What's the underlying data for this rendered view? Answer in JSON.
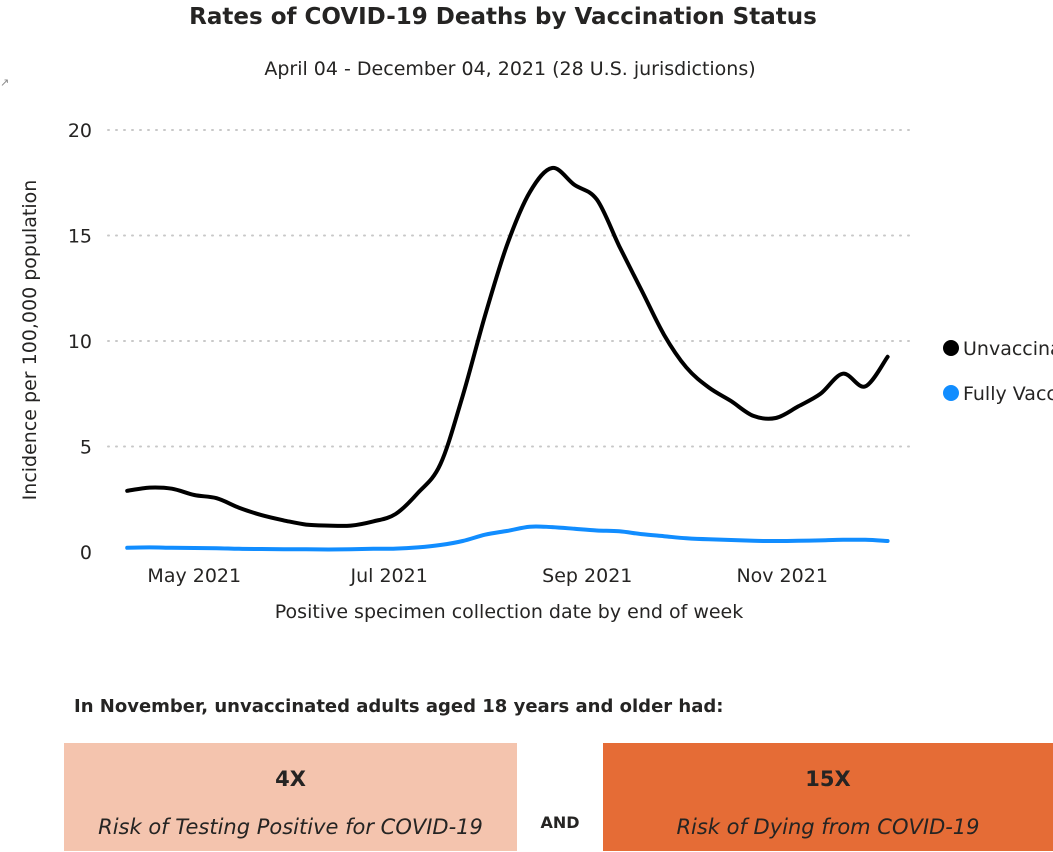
{
  "title": "Rates of COVID-19 Deaths by Vaccination Status",
  "subtitle": "April 04 - December 04, 2021 (28 U.S. jurisdictions)",
  "icons": {
    "expand": "expand-icon"
  },
  "chart_data": {
    "type": "line",
    "xlabel": "Positive specimen collection date by end of week",
    "ylabel": "Incidence per 100,000 population",
    "ylim": [
      0,
      20
    ],
    "yticks": [
      0,
      5,
      10,
      15,
      20
    ],
    "xlim": [
      "2021-04-04",
      "2021-12-11"
    ],
    "xticks": [
      {
        "date": "2021-05-01",
        "label": "May 2021"
      },
      {
        "date": "2021-07-01",
        "label": "Jul 2021"
      },
      {
        "date": "2021-09-01",
        "label": "Sep 2021"
      },
      {
        "date": "2021-11-01",
        "label": "Nov 2021"
      }
    ],
    "grid": "horizontal dotted",
    "legend_position": "right",
    "x": [
      "2021-04-10",
      "2021-04-17",
      "2021-04-24",
      "2021-05-01",
      "2021-05-08",
      "2021-05-15",
      "2021-05-22",
      "2021-05-29",
      "2021-06-05",
      "2021-06-12",
      "2021-06-19",
      "2021-06-26",
      "2021-07-03",
      "2021-07-10",
      "2021-07-17",
      "2021-07-24",
      "2021-07-31",
      "2021-08-07",
      "2021-08-14",
      "2021-08-21",
      "2021-08-28",
      "2021-09-04",
      "2021-09-11",
      "2021-09-18",
      "2021-09-25",
      "2021-10-02",
      "2021-10-09",
      "2021-10-16",
      "2021-10-23",
      "2021-10-30",
      "2021-11-06",
      "2021-11-13",
      "2021-11-20",
      "2021-11-27",
      "2021-12-04"
    ],
    "series": [
      {
        "name": "Unvaccinated",
        "color": "#000000",
        "values": [
          2.9,
          3.05,
          3.0,
          2.7,
          2.55,
          2.1,
          1.75,
          1.5,
          1.3,
          1.25,
          1.25,
          1.45,
          1.8,
          2.8,
          4.15,
          7.4,
          11.2,
          14.6,
          17.05,
          18.2,
          17.4,
          16.7,
          14.5,
          12.4,
          10.3,
          8.75,
          7.8,
          7.15,
          6.45,
          6.35,
          6.9,
          7.5,
          8.45,
          7.85,
          9.25
        ]
      },
      {
        "name": "Fully Vaccinated",
        "color": "#118dff",
        "values": [
          0.2,
          0.22,
          0.2,
          0.19,
          0.18,
          0.15,
          0.14,
          0.13,
          0.13,
          0.12,
          0.13,
          0.15,
          0.16,
          0.22,
          0.33,
          0.52,
          0.82,
          1.0,
          1.2,
          1.18,
          1.1,
          1.02,
          0.98,
          0.85,
          0.75,
          0.65,
          0.6,
          0.57,
          0.53,
          0.52,
          0.53,
          0.55,
          0.58,
          0.58,
          0.52
        ]
      }
    ]
  },
  "note": "In November, unvaccinated adults aged 18 years and older had:",
  "boxes": [
    {
      "value": "4X",
      "caption": "Risk of Testing Positive for COVID-19",
      "color": "#f4c4ae"
    },
    {
      "value": "15X",
      "caption": "Risk of Dying from COVID-19",
      "color": "#e56c36"
    }
  ],
  "and_label": "AND"
}
